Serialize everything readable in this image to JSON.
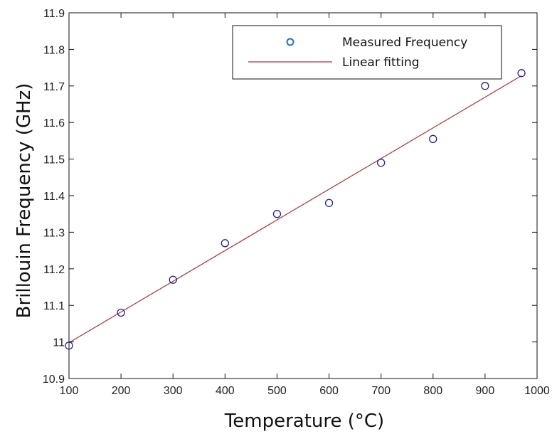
{
  "chart_data": {
    "type": "scatter",
    "title": "",
    "xlabel": "Temperature (°C)",
    "ylabel": "Brillouin Frequency (GHz)",
    "xlim": [
      100,
      1000
    ],
    "ylim": [
      10.9,
      11.9
    ],
    "xticks": [
      100,
      200,
      300,
      400,
      500,
      600,
      700,
      800,
      900,
      1000
    ],
    "yticks": [
      "10.9",
      "11",
      "11.1",
      "11.2",
      "11.3",
      "11.4",
      "11.5",
      "11.6",
      "11.7",
      "11.8",
      "11.9"
    ],
    "grid": false,
    "legend_position": "top-right",
    "series": [
      {
        "name": "Measured Frequency",
        "kind": "markers",
        "marker": "circle",
        "color": "#1f1fa8",
        "x": [
          100,
          200,
          300,
          400,
          500,
          600,
          700,
          800,
          900,
          970
        ],
        "y": [
          10.99,
          11.08,
          11.17,
          11.27,
          11.35,
          11.38,
          11.49,
          11.555,
          11.7,
          11.735
        ]
      },
      {
        "name": "Linear fitting",
        "kind": "line",
        "color": "#b03030",
        "x": [
          100,
          970
        ],
        "y": [
          10.998,
          11.728
        ]
      }
    ]
  },
  "legend": {
    "marker_color": "#1f6fcf"
  }
}
